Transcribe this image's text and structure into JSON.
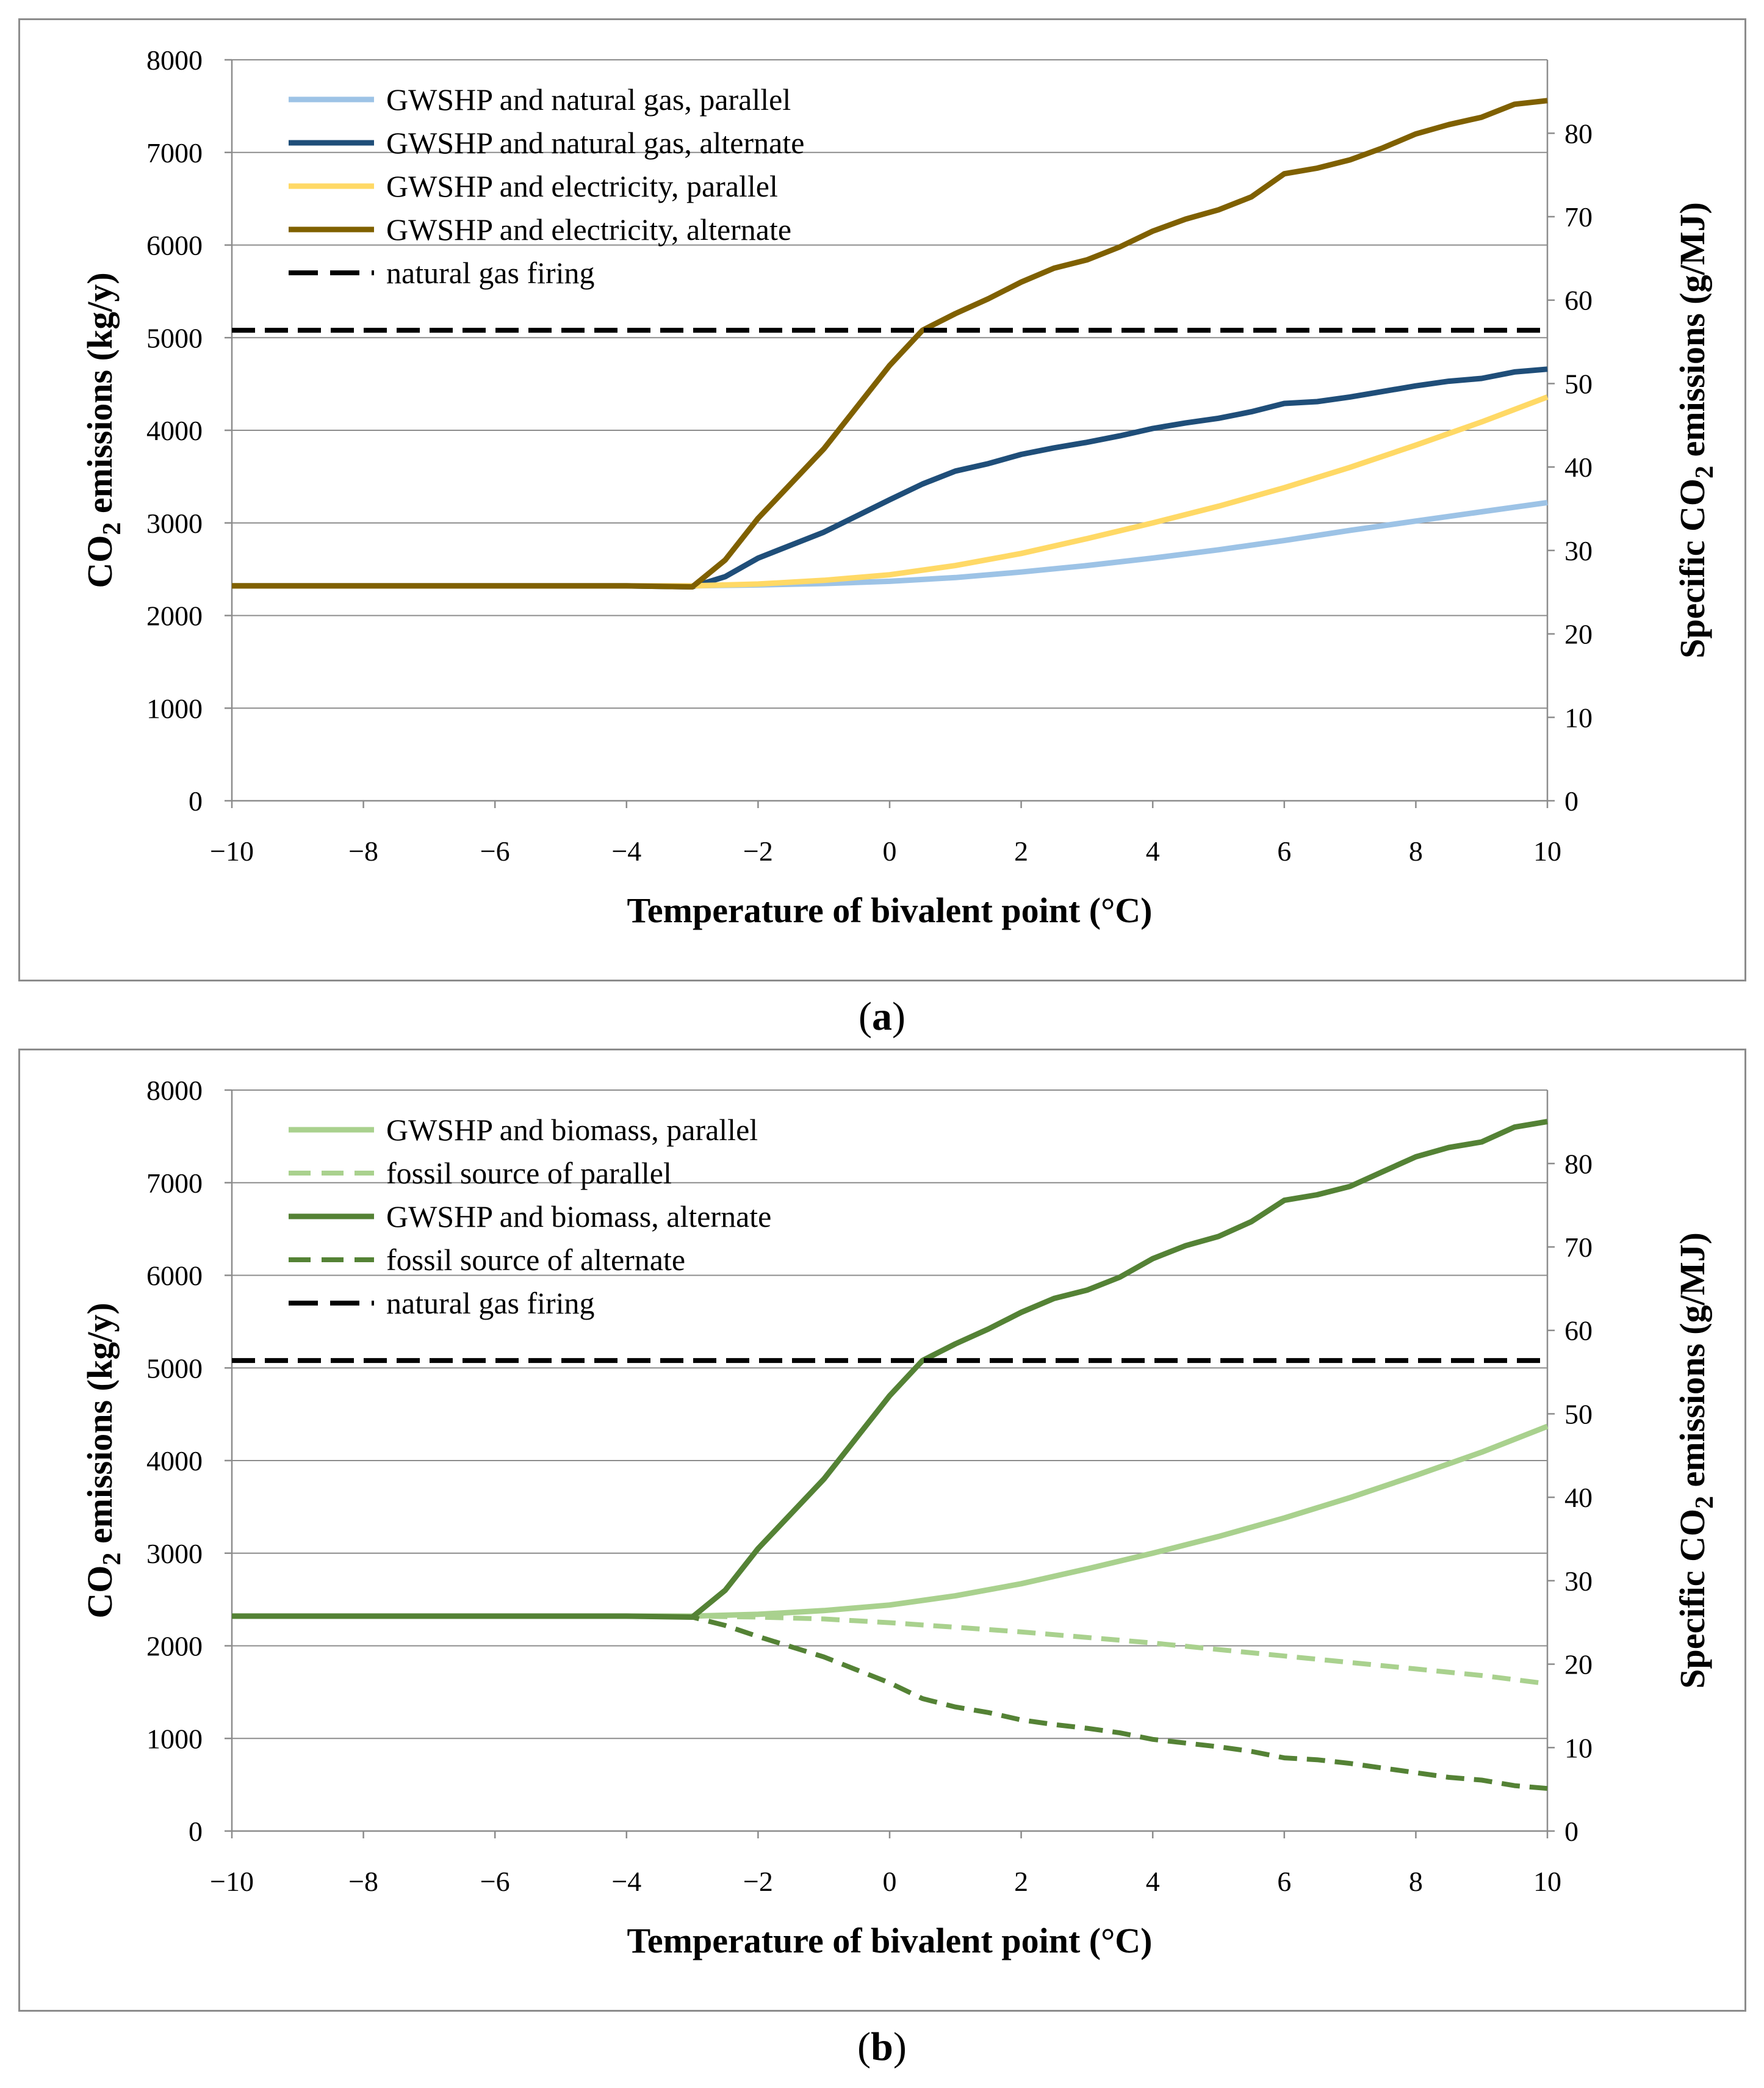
{
  "figures": [
    {
      "id": "a",
      "caption": "a",
      "chart_data": {
        "type": "line",
        "title": "",
        "xlabel": "Temperature of bivalent point (°C)",
        "ylabel_prefix": "CO",
        "ylabel_sub": "2",
        "ylabel_suffix": " emissions (kg/y)",
        "y2label_prefix": "Specific CO",
        "y2label_sub": "2",
        "y2label_suffix": " emissions (g/MJ)",
        "xlim": [
          -10,
          10
        ],
        "ylim": [
          0,
          8000
        ],
        "y2lim": [
          0,
          88.8
        ],
        "xticks": [
          -10,
          -8,
          -6,
          -4,
          -2,
          0,
          2,
          4,
          6,
          8,
          10
        ],
        "xtick_labels": [
          "−10",
          "−8",
          "−6",
          "−4",
          "−2",
          "0",
          "2",
          "4",
          "6",
          "8",
          "10"
        ],
        "yticks": [
          0,
          1000,
          2000,
          3000,
          4000,
          5000,
          6000,
          7000,
          8000
        ],
        "ytick_labels": [
          "0",
          "1000",
          "2000",
          "3000",
          "4000",
          "5000",
          "6000",
          "7000",
          "8000"
        ],
        "y2ticks": [
          0,
          10,
          20,
          30,
          40,
          50,
          60,
          70,
          80
        ],
        "y2tick_labels": [
          "0",
          "10",
          "20",
          "30",
          "40",
          "50",
          "60",
          "70",
          "80"
        ],
        "legend_position": "top-left",
        "series": [
          {
            "name": "GWSHP and natural gas, parallel",
            "color": "#9dc3e6",
            "dash": "solid",
            "x": [
              -10,
              -4,
              -3,
              -2,
              -1,
              0,
              1,
              2,
              3,
              4,
              5,
              6,
              7,
              8,
              9,
              10
            ],
            "values": [
              2320,
              2320,
              2320,
              2330,
              2345,
              2370,
              2410,
              2470,
              2540,
              2620,
              2710,
              2810,
              2920,
              3020,
              3120,
              3220
            ]
          },
          {
            "name": "GWSHP and natural gas, alternate",
            "color": "#1f4e79",
            "dash": "solid",
            "x": [
              -10,
              -4,
              -3,
              -2.5,
              -2,
              -1,
              0,
              0.5,
              1,
              1.5,
              2,
              2.5,
              3,
              3.5,
              4,
              4.5,
              5,
              5.5,
              6,
              6.5,
              7,
              7.5,
              8,
              8.5,
              9,
              9.5,
              10
            ],
            "values": [
              2320,
              2320,
              2310,
              2420,
              2620,
              2900,
              3250,
              3420,
              3560,
              3640,
              3740,
              3810,
              3870,
              3940,
              4020,
              4080,
              4130,
              4200,
              4290,
              4310,
              4360,
              4420,
              4480,
              4530,
              4560,
              4630,
              4660
            ]
          },
          {
            "name": "GWSHP and electricity, parallel",
            "color": "#ffd966",
            "dash": "solid",
            "x": [
              -10,
              -4,
              -3,
              -2,
              -1,
              0,
              1,
              2,
              3,
              4,
              5,
              6,
              7,
              8,
              9,
              10
            ],
            "values": [
              2320,
              2320,
              2320,
              2340,
              2380,
              2440,
              2540,
              2670,
              2830,
              3000,
              3180,
              3380,
              3600,
              3840,
              4090,
              4360
            ]
          },
          {
            "name": "GWSHP and electricity, alternate",
            "color": "#7f6000",
            "dash": "solid",
            "x": [
              -10,
              -4,
              -3,
              -2.5,
              -2,
              -1,
              0,
              0.5,
              1,
              1.5,
              2,
              2.5,
              3,
              3.5,
              4,
              4.5,
              5,
              5.5,
              6,
              6.5,
              7,
              7.5,
              8,
              8.5,
              9,
              9.5,
              10
            ],
            "values": [
              2320,
              2320,
              2310,
              2600,
              3050,
              3800,
              4700,
              5080,
              5260,
              5420,
              5600,
              5750,
              5840,
              5980,
              6150,
              6280,
              6380,
              6520,
              6770,
              6830,
              6920,
              7050,
              7200,
              7300,
              7380,
              7520,
              7560
            ]
          },
          {
            "name": "natural gas firing",
            "color": "#000000",
            "dash": "dash",
            "x": [
              -10,
              10
            ],
            "values": [
              5080,
              5080
            ]
          }
        ]
      }
    },
    {
      "id": "b",
      "caption": "b",
      "chart_data": {
        "type": "line",
        "title": "",
        "xlabel": "Temperature of bivalent point (°C)",
        "ylabel_prefix": "CO",
        "ylabel_sub": "2",
        "ylabel_suffix": " emissions (kg/y)",
        "y2label_prefix": "Specific CO",
        "y2label_sub": "2",
        "y2label_suffix": " emissions (g/MJ)",
        "xlim": [
          -10,
          10
        ],
        "ylim": [
          0,
          8000
        ],
        "y2lim": [
          0,
          88.8
        ],
        "xticks": [
          -10,
          -8,
          -6,
          -4,
          -2,
          0,
          2,
          4,
          6,
          8,
          10
        ],
        "xtick_labels": [
          "−10",
          "−8",
          "−6",
          "−4",
          "−2",
          "0",
          "2",
          "4",
          "6",
          "8",
          "10"
        ],
        "yticks": [
          0,
          1000,
          2000,
          3000,
          4000,
          5000,
          6000,
          7000,
          8000
        ],
        "ytick_labels": [
          "0",
          "1000",
          "2000",
          "3000",
          "4000",
          "5000",
          "6000",
          "7000",
          "8000"
        ],
        "y2ticks": [
          0,
          10,
          20,
          30,
          40,
          50,
          60,
          70,
          80
        ],
        "y2tick_labels": [
          "0",
          "10",
          "20",
          "30",
          "40",
          "50",
          "60",
          "70",
          "80"
        ],
        "legend_position": "top-left",
        "series": [
          {
            "name": "GWSHP and biomass, parallel",
            "color": "#a9d18e",
            "dash": "solid",
            "x": [
              -10,
              -4,
              -3,
              -2,
              -1,
              0,
              1,
              2,
              3,
              4,
              5,
              6,
              7,
              8,
              9,
              10
            ],
            "values": [
              2320,
              2320,
              2320,
              2340,
              2380,
              2440,
              2540,
              2670,
              2830,
              3000,
              3180,
              3380,
              3600,
              3840,
              4090,
              4370
            ]
          },
          {
            "name": "fossil source of parallel",
            "color": "#a9d18e",
            "dash": "dash",
            "x": [
              -10,
              -4,
              -3,
              -2,
              -1,
              0,
              1,
              2,
              3,
              4,
              5,
              6,
              7,
              8,
              9,
              10
            ],
            "values": [
              2320,
              2320,
              2320,
              2310,
              2290,
              2250,
              2200,
              2150,
              2090,
              2030,
              1960,
              1890,
              1820,
              1750,
              1680,
              1590
            ]
          },
          {
            "name": "GWSHP and biomass, alternate",
            "color": "#548235",
            "dash": "solid",
            "x": [
              -10,
              -4,
              -3,
              -2.5,
              -2,
              -1,
              0,
              0.5,
              1,
              1.5,
              2,
              2.5,
              3,
              3.5,
              4,
              4.5,
              5,
              5.5,
              6,
              6.5,
              7,
              7.5,
              8,
              8.5,
              9,
              9.5,
              10
            ],
            "values": [
              2320,
              2320,
              2310,
              2600,
              3050,
              3800,
              4700,
              5080,
              5260,
              5420,
              5600,
              5750,
              5840,
              5980,
              6180,
              6320,
              6420,
              6580,
              6810,
              6870,
              6960,
              7120,
              7280,
              7380,
              7440,
              7600,
              7660
            ]
          },
          {
            "name": "fossil source of alternate",
            "color": "#548235",
            "dash": "dash",
            "x": [
              -10,
              -4,
              -3,
              -2.5,
              -2,
              -1,
              0,
              0.5,
              1,
              1.5,
              2,
              2.5,
              3,
              3.5,
              4,
              4.5,
              5,
              5.5,
              6,
              6.5,
              7,
              7.5,
              8,
              8.5,
              9,
              9.5,
              10
            ],
            "values": [
              2320,
              2320,
              2310,
              2220,
              2100,
              1880,
              1600,
              1430,
              1340,
              1280,
              1200,
              1150,
              1110,
              1060,
              990,
              950,
              910,
              860,
              790,
              770,
              730,
              680,
              630,
              580,
              550,
              490,
              460
            ]
          },
          {
            "name": "natural gas firing",
            "color": "#000000",
            "dash": "dash",
            "x": [
              -10,
              10
            ],
            "values": [
              5080,
              5080
            ]
          }
        ]
      }
    }
  ]
}
